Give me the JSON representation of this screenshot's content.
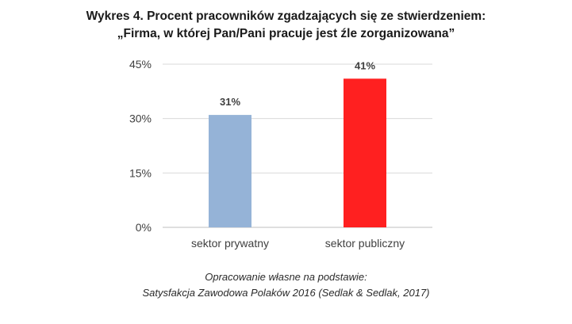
{
  "title_line1": "Wykres 4. Procent pracowników zgadzających się ze stwierdzeniem:",
  "title_line2": "„Firma, w której Pan/Pani pracuje jest źle zorganizowana”",
  "source_line1": "Opracowanie własne na podstawie:",
  "source_line2": "Satysfakcja Zawodowa Polaków 2016 (Sedlak & Sedlak, 2017)",
  "chart_data": {
    "type": "bar",
    "categories": [
      "sektor prywatny",
      "sektor publiczny"
    ],
    "values": [
      31,
      41
    ],
    "data_labels": [
      "31%",
      "41%"
    ],
    "colors": [
      "#95B3D7",
      "#FF2020"
    ],
    "ylim": [
      0,
      45
    ],
    "yticks": [
      0,
      15,
      30,
      45
    ],
    "ytick_labels": [
      "0%",
      "15%",
      "30%",
      "45%"
    ],
    "grid": true,
    "legend": "none"
  }
}
